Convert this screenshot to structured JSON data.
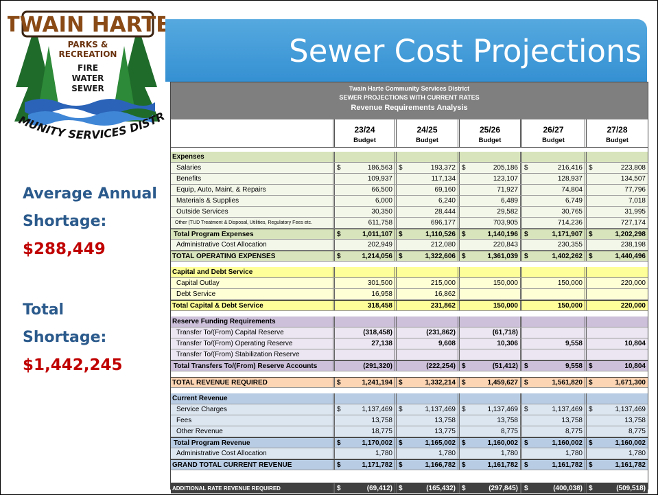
{
  "logo": {
    "name": "TWAIN HARTE",
    "services": [
      "PARKS &",
      "RECREATION",
      "FIRE",
      "WATER",
      "SEWER"
    ],
    "district": "COMMUNITY SERVICES DISTRICT"
  },
  "title": "Sewer Cost Projections",
  "stats": [
    {
      "label": [
        "Average Annual",
        "Shortage:"
      ],
      "value": "$288,449"
    },
    {
      "label": [
        "Total",
        "Shortage:"
      ],
      "value": "$1,442,245"
    }
  ],
  "table": {
    "header": [
      "Twain Harte Community Services District",
      "SEWER PROJECTIONS WITH CURRENT RATES",
      "Revenue Requirements Analysis"
    ],
    "columns": [
      {
        "year": "23/24",
        "type": "Budget"
      },
      {
        "year": "24/25",
        "type": "Budget"
      },
      {
        "year": "25/26",
        "type": "Budget"
      },
      {
        "year": "26/27",
        "type": "Budget"
      },
      {
        "year": "27/28",
        "type": "Budget"
      }
    ],
    "currency_symbol": "$",
    "sections": [
      {
        "heading": "Expenses",
        "color": "#d8e4bc",
        "row_color": "#f3f7ea",
        "rows": [
          {
            "label": "Salaries",
            "kind": "item",
            "dollar": true,
            "values": [
              "186,563",
              "193,372",
              "205,186",
              "216,416",
              "223,808"
            ]
          },
          {
            "label": "Benefits",
            "kind": "item",
            "values": [
              "109,937",
              "117,134",
              "123,107",
              "128,937",
              "134,507"
            ]
          },
          {
            "label": "Equip, Auto, Maint, & Repairs",
            "kind": "item",
            "values": [
              "66,500",
              "69,160",
              "71,927",
              "74,804",
              "77,796"
            ]
          },
          {
            "label": "Materials & Supplies",
            "kind": "item",
            "values": [
              "6,000",
              "6,240",
              "6,489",
              "6,749",
              "7,018"
            ]
          },
          {
            "label": "Outside Services",
            "kind": "item",
            "values": [
              "30,350",
              "28,444",
              "29,582",
              "30,765",
              "31,995"
            ]
          },
          {
            "label": "Other (TUD Treatment & Disposal, Utilities, Regulatory Fees etc.",
            "kind": "small",
            "values": [
              "611,758",
              "696,177",
              "703,905",
              "714,236",
              "727,174"
            ]
          },
          {
            "label": "Total Program Expenses",
            "kind": "subtotal",
            "dollar": true,
            "values": [
              "1,011,107",
              "1,110,526",
              "1,140,196",
              "1,171,907",
              "1,202,298"
            ]
          },
          {
            "label": "Administrative Cost Allocation",
            "kind": "item",
            "values": [
              "202,949",
              "212,080",
              "220,843",
              "230,355",
              "238,198"
            ]
          },
          {
            "label": "TOTAL OPERATING EXPENSES",
            "kind": "total",
            "dollar": true,
            "values": [
              "1,214,056",
              "1,322,606",
              "1,361,039",
              "1,402,262",
              "1,440,496"
            ]
          }
        ]
      },
      {
        "heading": "Capital and Debt Service",
        "color": "#ffff99",
        "row_color": "#ffffd6",
        "rows": [
          {
            "label": "Capital Outlay",
            "kind": "item",
            "values": [
              "301,500",
              "215,000",
              "150,000",
              "150,000",
              "220,000"
            ]
          },
          {
            "label": "Debt Service",
            "kind": "item",
            "values": [
              "16,958",
              "16,862",
              null,
              null,
              null
            ]
          },
          {
            "label": "Total Capital & Debt Service",
            "kind": "total",
            "values": [
              "318,458",
              "231,862",
              "150,000",
              "150,000",
              "220,000"
            ]
          }
        ]
      },
      {
        "heading": "Reserve Funding Requirements",
        "color": "#ccc0da",
        "row_color": "#ebe6f1",
        "rows": [
          {
            "label": "Transfer To/(From) Capital Reserve",
            "kind": "item",
            "bold": true,
            "values": [
              "(318,458)",
              "(231,862)",
              "(61,718)",
              null,
              null
            ]
          },
          {
            "label": "Transfer To/(From) Operating Reserve",
            "kind": "item",
            "bold": true,
            "values": [
              "27,138",
              "9,608",
              "10,306",
              "9,558",
              "10,804"
            ]
          },
          {
            "label": "Transfer To/(From) Stabilization Reserve",
            "kind": "item",
            "values": [
              null,
              null,
              null,
              null,
              null
            ]
          },
          {
            "label": "Total Transfers To/(From) Reserve Accounts",
            "kind": "subtotal",
            "dollar": [
              false,
              false,
              true,
              true,
              true
            ],
            "values": [
              "(291,320)",
              "(222,254)",
              "(51,412)",
              "9,558",
              "10,804"
            ]
          }
        ]
      },
      {
        "color": "#fcd5b4",
        "row_color": "#fcd5b4",
        "rows": [
          {
            "label": "TOTAL REVENUE REQUIRED",
            "kind": "total",
            "dollar": true,
            "values": [
              "1,241,194",
              "1,332,214",
              "1,459,627",
              "1,561,820",
              "1,671,300"
            ]
          }
        ]
      },
      {
        "heading": "Current Revenue",
        "color": "#b8cce4",
        "row_color": "#dce6f1",
        "rows": [
          {
            "label": "Service Charges",
            "kind": "item",
            "dollar": true,
            "values": [
              "1,137,469",
              "1,137,469",
              "1,137,469",
              "1,137,469",
              "1,137,469"
            ]
          },
          {
            "label": "Fees",
            "kind": "item",
            "values": [
              "13,758",
              "13,758",
              "13,758",
              "13,758",
              "13,758"
            ]
          },
          {
            "label": "Other Revenue",
            "kind": "item",
            "values": [
              "18,775",
              "13,775",
              "8,775",
              "8,775",
              "8,775"
            ]
          },
          {
            "label": "Total Program Revenue",
            "kind": "subtotal",
            "dollar": true,
            "values": [
              "1,170,002",
              "1,165,002",
              "1,160,002",
              "1,160,002",
              "1,160,002"
            ]
          },
          {
            "label": "Administrative Cost Allocation",
            "kind": "item",
            "values": [
              "1,780",
              "1,780",
              "1,780",
              "1,780",
              "1,780"
            ]
          },
          {
            "label": "GRAND TOTAL CURRENT REVENUE",
            "kind": "total",
            "dollar": true,
            "values": [
              "1,171,782",
              "1,166,782",
              "1,161,782",
              "1,161,782",
              "1,161,782"
            ]
          }
        ]
      },
      {
        "color": "#404040",
        "row_color": "#404040",
        "dark": true,
        "rows": [
          {
            "label": "ADDITIONAL RATE REVENUE REQUIRED",
            "kind": "total-small",
            "dollar": true,
            "values": [
              "(69,412)",
              "(165,432)",
              "(297,845)",
              "(400,038)",
              "(509,518)"
            ]
          }
        ]
      }
    ]
  }
}
